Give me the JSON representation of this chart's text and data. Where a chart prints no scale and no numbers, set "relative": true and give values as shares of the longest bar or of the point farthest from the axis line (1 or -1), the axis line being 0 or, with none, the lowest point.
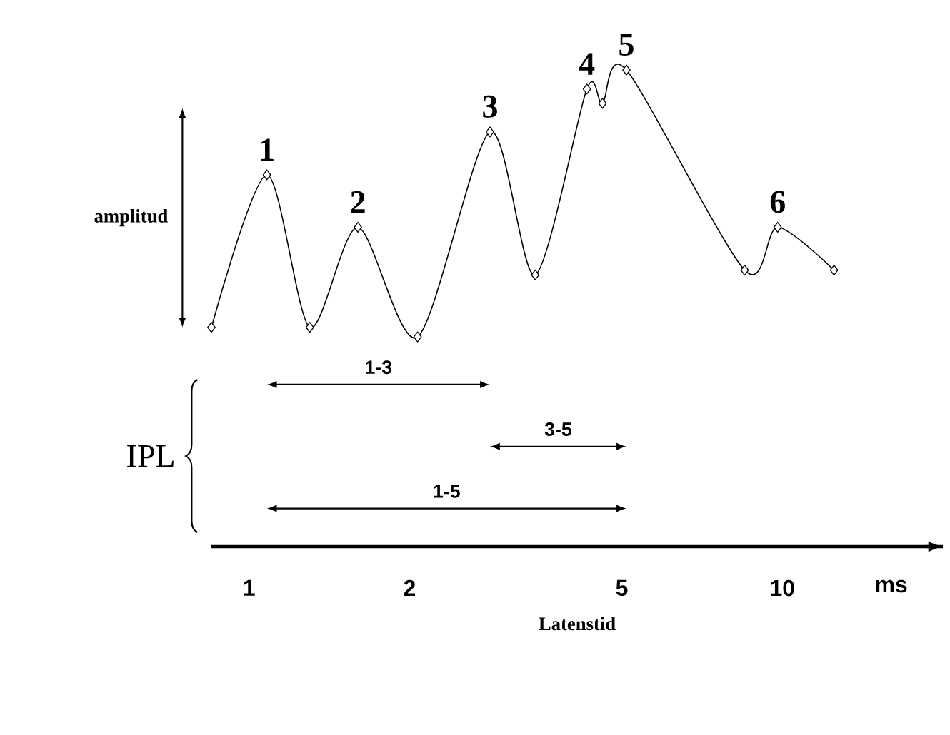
{
  "chart_data": {
    "type": "line",
    "relative": true,
    "xlabel": "Latenstid",
    "log": "x",
    "xlim": [
      0.85,
      20
    ],
    "xticks": [
      1,
      2,
      5,
      10
    ],
    "marker": "diamond",
    "line_style": "solid",
    "series": [
      {
        "color": "#000000",
        "x": [
          0.85,
          1.08,
          1.3,
          1.6,
          2.07,
          2.83,
          3.44,
          4.3,
          4.6,
          5.1,
          8.5,
          9.8,
          12.5
        ],
        "values": [
          0.46,
          0.78,
          0.46,
          0.67,
          0.44,
          0.87,
          0.57,
          0.96,
          0.93,
          1,
          0.58,
          0.67,
          0.58
        ]
      }
    ],
    "annotations": [
      {
        "text": "1",
        "x": 1.08,
        "y": 0.78
      },
      {
        "text": "2",
        "x": 1.6,
        "y": 0.67
      },
      {
        "text": "3",
        "x": 2.83,
        "y": 0.87
      },
      {
        "text": "4",
        "x": 4.3,
        "y": 0.96
      },
      {
        "text": "5",
        "x": 5.1,
        "y": 1
      },
      {
        "text": "6",
        "x": 9.8,
        "y": 0.67
      },
      "amplitud",
      "IPL",
      "1-3",
      "3-5",
      "1-5",
      "ms"
    ]
  }
}
